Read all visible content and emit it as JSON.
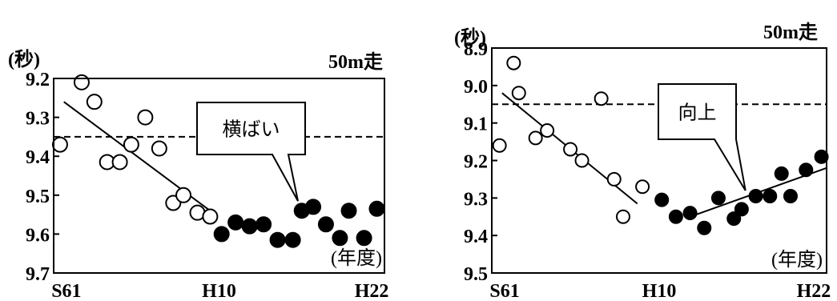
{
  "chart_data": [
    {
      "type": "scatter",
      "title": "50m走",
      "ylabel": "(秒)",
      "xlabel": "(年度)",
      "y_inverted": true,
      "ylim": [
        9.7,
        9.2
      ],
      "yticks": [
        9.2,
        9.3,
        9.4,
        9.5,
        9.6,
        9.7
      ],
      "ytick_labels": [
        "9.2",
        "9.3",
        "9.4",
        "9.5",
        "9.6",
        "9.7"
      ],
      "xlim": [
        1985,
        2011
      ],
      "xtick_labels": [
        {
          "label": "S61",
          "x": 1986
        },
        {
          "label": "H10",
          "x": 1998
        },
        {
          "label": "H22",
          "x": 2010
        }
      ],
      "reference_line": 9.35,
      "series": [
        {
          "marker": "open",
          "x": [
            1985.5,
            1987.2,
            1988.2,
            1989.2,
            1990.2,
            1991.1,
            1992.2,
            1993.3,
            1994.4,
            1995.2,
            1996.3,
            1997.3
          ],
          "y": [
            9.37,
            9.21,
            9.26,
            9.415,
            9.415,
            9.37,
            9.3,
            9.38,
            9.52,
            9.5,
            9.545,
            9.555
          ]
        },
        {
          "marker": "filled",
          "x": [
            1998.2,
            1999.3,
            2000.4,
            2001.5,
            2002.6,
            2003.8,
            2004.5,
            2005.4,
            2006.4,
            2007.5,
            2008.2,
            2009.4,
            2010.4
          ],
          "y": [
            9.6,
            9.57,
            9.58,
            9.575,
            9.615,
            9.615,
            9.54,
            9.53,
            9.575,
            9.61,
            9.54,
            9.61,
            9.535
          ]
        }
      ],
      "trend_lines": [
        {
          "x": [
            1985.8,
            1997.5
          ],
          "y": [
            9.26,
            9.545
          ]
        }
      ],
      "callout": {
        "text": "横ばい",
        "x": 2004.2,
        "y": 9.515
      }
    },
    {
      "type": "scatter",
      "title": "50m走",
      "ylabel": "(秒)",
      "xlabel": "(年度)",
      "y_inverted": true,
      "ylim": [
        9.5,
        8.9
      ],
      "yticks": [
        8.9,
        9.0,
        9.1,
        9.2,
        9.3,
        9.4,
        9.5
      ],
      "ytick_labels": [
        "8.9",
        "9.0",
        "9.1",
        "9.2",
        "9.3",
        "9.4",
        "9.5"
      ],
      "xlim": [
        1985,
        2011
      ],
      "xtick_labels": [
        {
          "label": "S61",
          "x": 1986
        },
        {
          "label": "H10",
          "x": 1998
        },
        {
          "label": "H22",
          "x": 2010
        }
      ],
      "reference_line": 9.05,
      "series": [
        {
          "marker": "open",
          "x": [
            1985.6,
            1986.7,
            1987.1,
            1988.4,
            1989.3,
            1991.1,
            1992.0,
            1993.5,
            1994.5,
            1995.2,
            1996.7
          ],
          "y": [
            9.16,
            8.94,
            9.02,
            9.14,
            9.12,
            9.17,
            9.2,
            9.035,
            9.25,
            9.35,
            9.27
          ]
        },
        {
          "marker": "filled",
          "x": [
            1998.2,
            1999.3,
            2000.4,
            2001.5,
            2002.6,
            2003.8,
            2004.4,
            2005.5,
            2006.6,
            2007.5,
            2008.2,
            2009.4,
            2010.6
          ],
          "y": [
            9.305,
            9.35,
            9.34,
            9.38,
            9.3,
            9.355,
            9.33,
            9.295,
            9.295,
            9.235,
            9.295,
            9.225,
            9.19
          ]
        }
      ],
      "trend_lines": [
        {
          "x": [
            1985.8,
            1996.3
          ],
          "y": [
            9.02,
            9.315
          ]
        },
        {
          "x": [
            2000.8,
            2011.0
          ],
          "y": [
            9.345,
            9.22
          ]
        }
      ],
      "callout": {
        "text": "向上",
        "x": 2004.7,
        "y": 9.28
      }
    }
  ]
}
